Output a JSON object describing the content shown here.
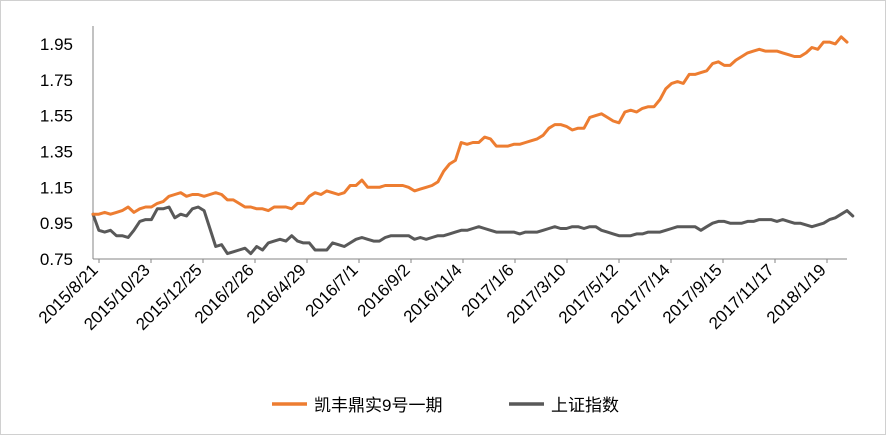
{
  "chart_data": {
    "type": "line",
    "title": "",
    "xlabel": "",
    "ylabel": "",
    "ylim": [
      0.75,
      2.05
    ],
    "yticks": [
      0.75,
      0.95,
      1.15,
      1.35,
      1.55,
      1.75,
      1.95
    ],
    "ytick_labels": [
      "0.75",
      "0.95",
      "1.15",
      "1.35",
      "1.55",
      "1.75",
      "1.95"
    ],
    "xtick_labels": [
      "2015/8/21",
      "2015/10/23",
      "2015/12/25",
      "2016/2/26",
      "2016/4/29",
      "2016/7/1",
      "2016/9/2",
      "2016/11/4",
      "2017/1/6",
      "2017/3/10",
      "2017/5/12",
      "2017/7/14",
      "2017/9/15",
      "2017/11/17",
      "2018/1/19"
    ],
    "grid": false,
    "legend_position": "bottom",
    "series": [
      {
        "name": "凯丰鼎实9号一期",
        "color": "#ED7D31",
        "values": [
          1.0,
          1.0,
          1.01,
          1.0,
          1.01,
          1.02,
          1.04,
          1.01,
          1.03,
          1.04,
          1.04,
          1.06,
          1.07,
          1.1,
          1.11,
          1.12,
          1.1,
          1.11,
          1.11,
          1.1,
          1.11,
          1.12,
          1.11,
          1.08,
          1.08,
          1.06,
          1.04,
          1.04,
          1.03,
          1.03,
          1.02,
          1.04,
          1.04,
          1.04,
          1.03,
          1.06,
          1.06,
          1.1,
          1.12,
          1.11,
          1.13,
          1.12,
          1.11,
          1.12,
          1.16,
          1.16,
          1.19,
          1.15,
          1.15,
          1.15,
          1.16,
          1.16,
          1.16,
          1.16,
          1.15,
          1.13,
          1.14,
          1.15,
          1.16,
          1.18,
          1.24,
          1.28,
          1.3,
          1.4,
          1.39,
          1.4,
          1.4,
          1.43,
          1.42,
          1.38,
          1.38,
          1.38,
          1.39,
          1.39,
          1.4,
          1.41,
          1.42,
          1.44,
          1.48,
          1.5,
          1.5,
          1.49,
          1.47,
          1.48,
          1.48,
          1.54,
          1.55,
          1.56,
          1.54,
          1.52,
          1.51,
          1.57,
          1.58,
          1.57,
          1.59,
          1.6,
          1.6,
          1.64,
          1.7,
          1.73,
          1.74,
          1.73,
          1.78,
          1.78,
          1.79,
          1.8,
          1.84,
          1.85,
          1.83,
          1.83,
          1.86,
          1.88,
          1.9,
          1.91,
          1.92,
          1.91,
          1.91,
          1.91,
          1.9,
          1.89,
          1.88,
          1.88,
          1.9,
          1.93,
          1.92,
          1.96,
          1.96,
          1.95,
          1.99,
          1.96
        ]
      },
      {
        "name": "上证指数",
        "color": "#595959",
        "values": [
          1.0,
          0.91,
          0.9,
          0.91,
          0.88,
          0.88,
          0.87,
          0.91,
          0.96,
          0.97,
          0.97,
          1.03,
          1.03,
          1.04,
          0.98,
          1.0,
          0.99,
          1.03,
          1.04,
          1.02,
          0.92,
          0.82,
          0.83,
          0.78,
          0.79,
          0.8,
          0.81,
          0.78,
          0.82,
          0.8,
          0.84,
          0.85,
          0.86,
          0.85,
          0.88,
          0.85,
          0.84,
          0.84,
          0.8,
          0.8,
          0.8,
          0.84,
          0.83,
          0.82,
          0.84,
          0.86,
          0.87,
          0.86,
          0.85,
          0.85,
          0.87,
          0.88,
          0.88,
          0.88,
          0.88,
          0.86,
          0.87,
          0.86,
          0.87,
          0.88,
          0.88,
          0.89,
          0.9,
          0.91,
          0.91,
          0.92,
          0.93,
          0.92,
          0.91,
          0.9,
          0.9,
          0.9,
          0.9,
          0.89,
          0.9,
          0.9,
          0.9,
          0.91,
          0.92,
          0.93,
          0.92,
          0.92,
          0.93,
          0.93,
          0.92,
          0.93,
          0.93,
          0.91,
          0.9,
          0.89,
          0.88,
          0.88,
          0.88,
          0.89,
          0.89,
          0.9,
          0.9,
          0.9,
          0.91,
          0.92,
          0.93,
          0.93,
          0.93,
          0.93,
          0.91,
          0.93,
          0.95,
          0.96,
          0.96,
          0.95,
          0.95,
          0.95,
          0.96,
          0.96,
          0.97,
          0.97,
          0.97,
          0.96,
          0.97,
          0.96,
          0.95,
          0.95,
          0.94,
          0.93,
          0.94,
          0.95,
          0.97,
          0.98,
          1.0,
          1.02,
          0.99
        ]
      }
    ]
  }
}
